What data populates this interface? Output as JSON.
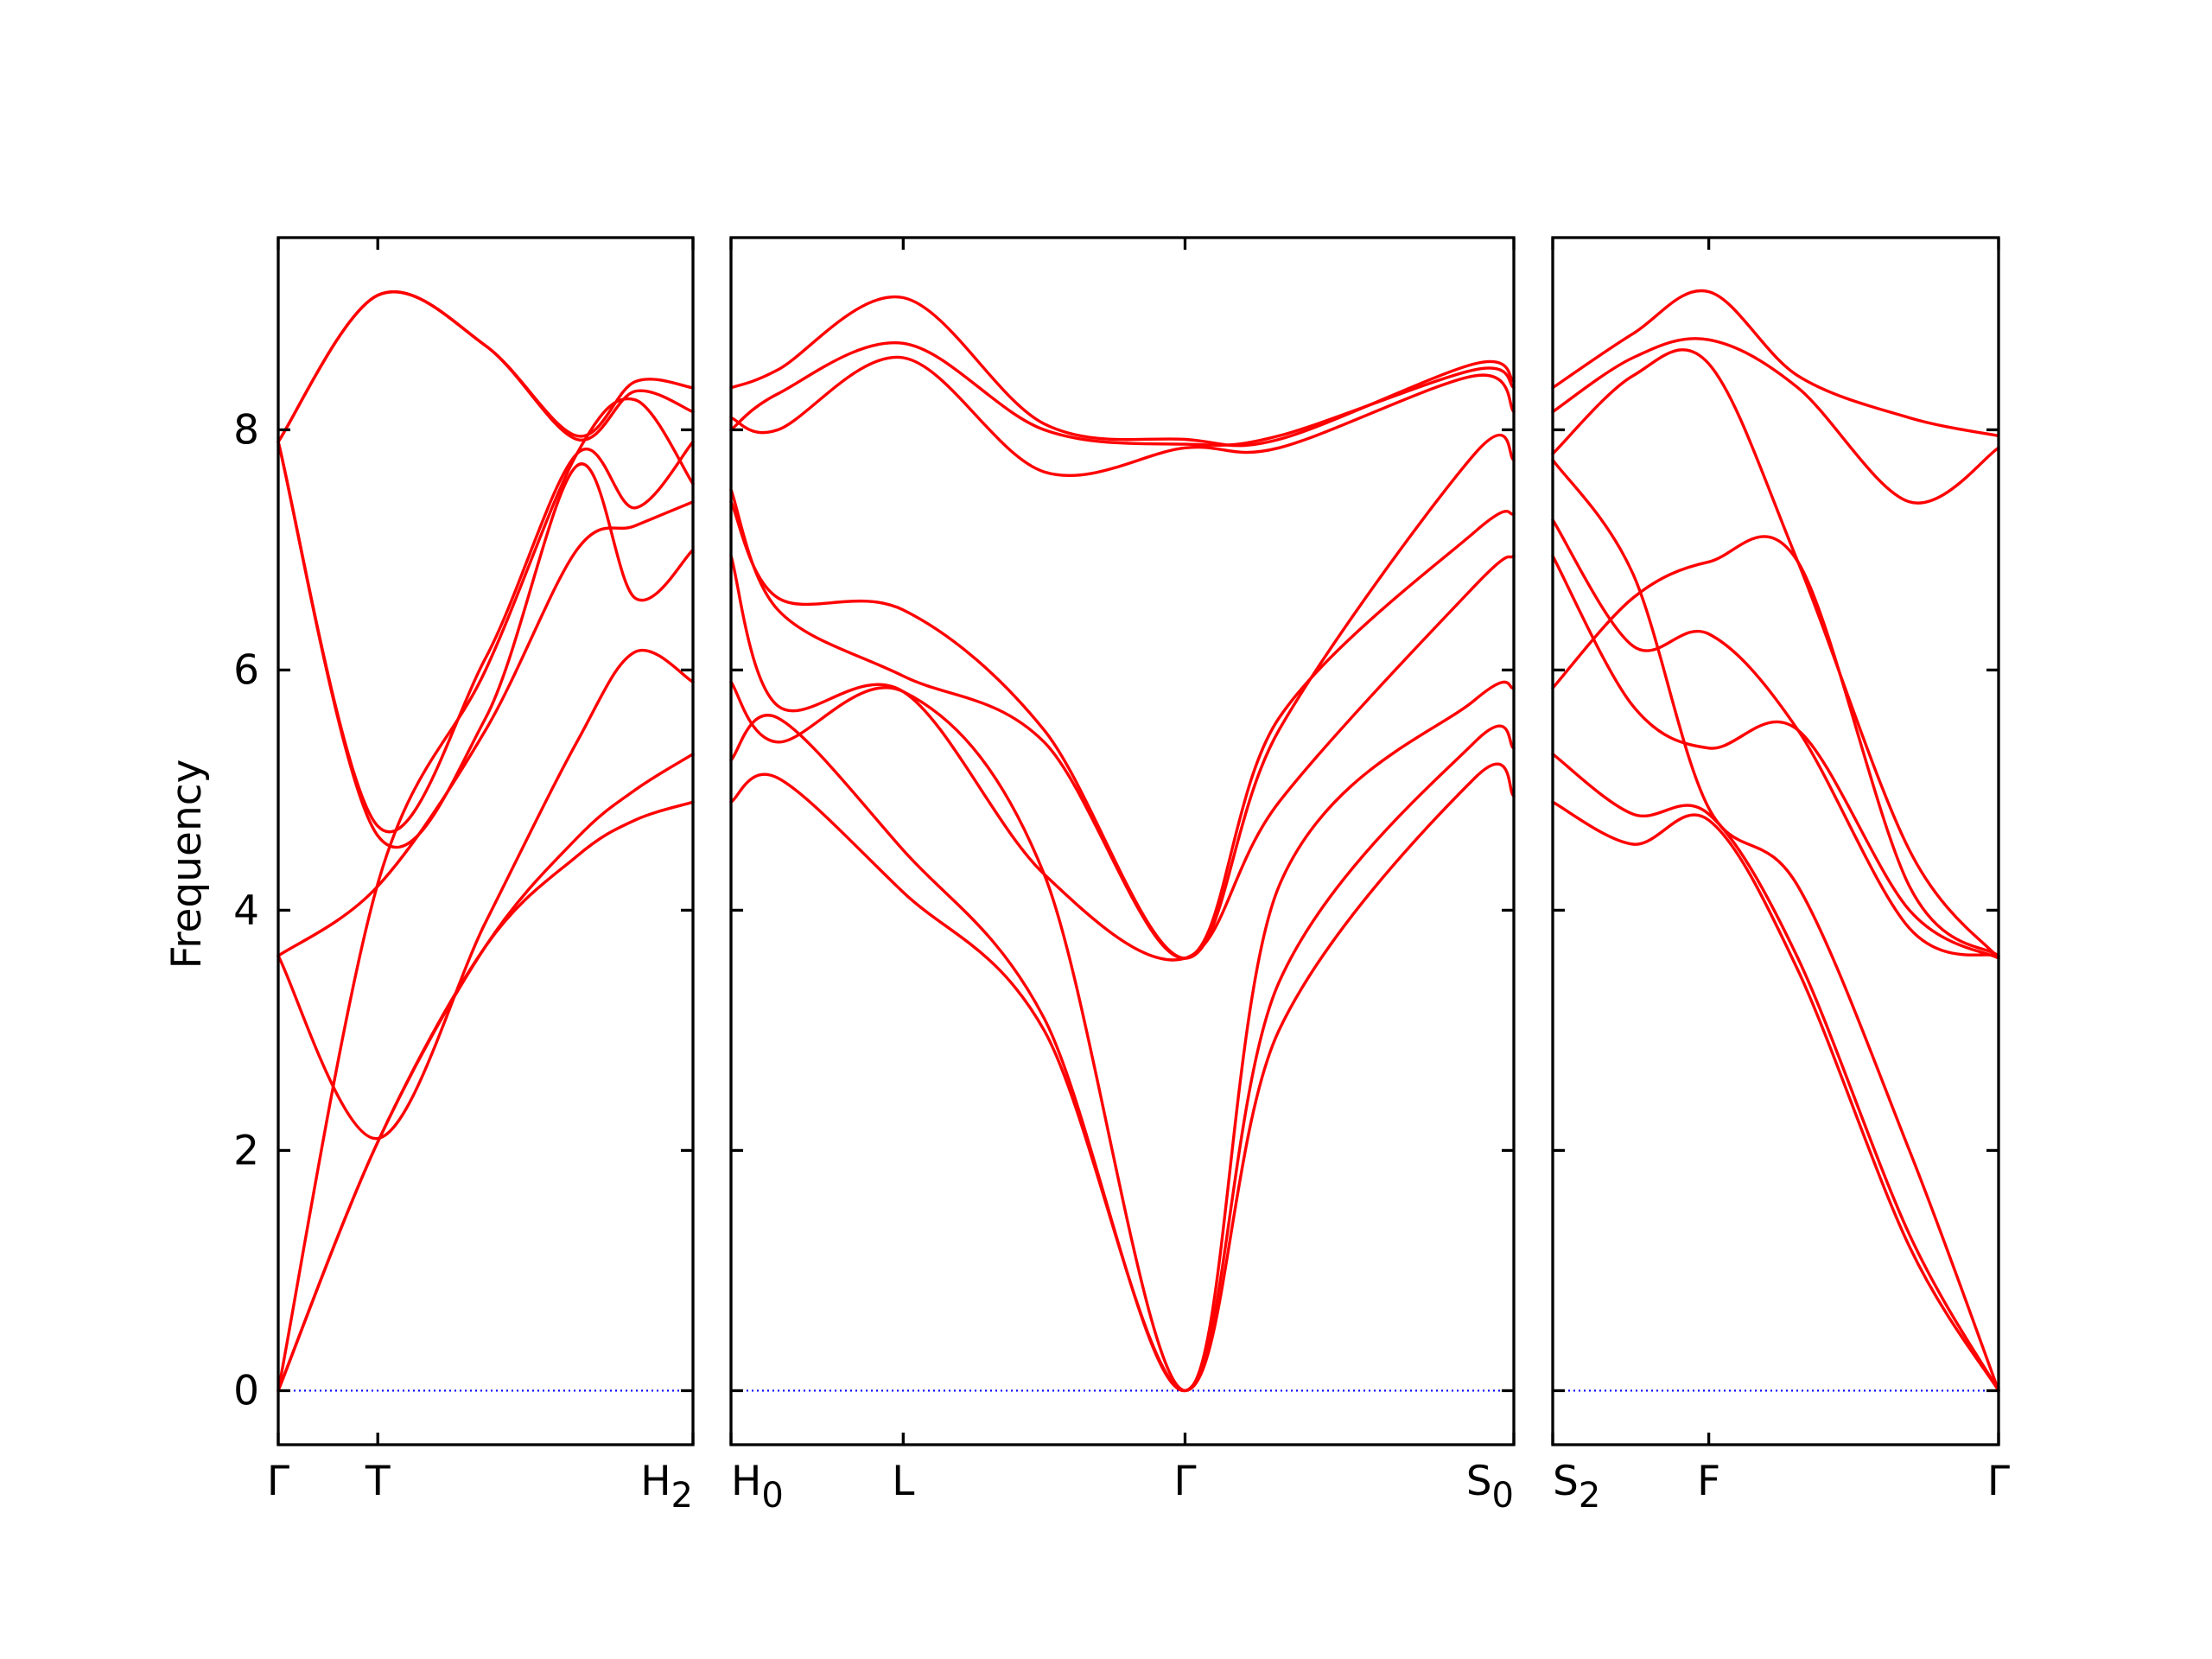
{
  "chart_data": {
    "type": "line",
    "ylabel": "Frequency",
    "ylim": [
      -0.45,
      9.6
    ],
    "yticks": [
      0,
      2,
      4,
      6,
      8
    ],
    "grid": false,
    "legend": "none",
    "colors": {
      "band": "#ff0000",
      "zero_line": "#0000ff",
      "frame": "#000000"
    },
    "panels": [
      {
        "name": "Γ–T–H2",
        "xlim": [
          0,
          1
        ],
        "ticks": [
          {
            "x": 0,
            "label": "Γ"
          },
          {
            "x": 0.24,
            "label": "T"
          },
          {
            "x": 1,
            "label": "H",
            "sub": "2",
            "anchor": "end"
          }
        ],
        "x": [
          0,
          0.24,
          0.5,
          0.72,
          0.86,
          1
        ],
        "bands": [
          [
            0,
            2.07,
            3.7,
            4.45,
            4.75,
            4.9
          ],
          [
            0,
            2.07,
            3.7,
            4.6,
            5.0,
            5.3
          ],
          [
            3.62,
            2.1,
            3.9,
            5.4,
            6.15,
            5.9
          ],
          [
            7.9,
            4.62,
            5.6,
            7.7,
            6.6,
            7.0
          ],
          [
            3.62,
            4.2,
            5.5,
            7.0,
            7.2,
            7.4
          ],
          [
            0,
            4.22,
            6.0,
            7.8,
            8.25,
            7.55
          ],
          [
            7.9,
            4.7,
            6.1,
            7.8,
            7.35,
            7.9
          ],
          [
            7.9,
            9.12,
            8.7,
            7.92,
            8.32,
            8.15
          ],
          [
            7.9,
            9.12,
            8.7,
            7.95,
            8.4,
            8.35
          ]
        ]
      },
      {
        "name": "H0–L–Γ–S0",
        "xlim": [
          0,
          1
        ],
        "ticks": [
          {
            "x": 0,
            "label": "H",
            "sub": "0",
            "anchor": "start"
          },
          {
            "x": 0.22,
            "label": "L"
          },
          {
            "x": 0.58,
            "label": "Γ"
          },
          {
            "x": 1,
            "label": "S",
            "sub": "0",
            "anchor": "end"
          }
        ],
        "x": [
          0,
          0.06,
          0.22,
          0.4,
          0.58,
          0.7,
          0.95,
          1
        ],
        "bands": [
          [
            4.9,
            5.1,
            4.15,
            3.0,
            0,
            3.0,
            5.1,
            4.95
          ],
          [
            5.25,
            5.6,
            4.5,
            3.1,
            0,
            3.4,
            5.4,
            5.35
          ],
          [
            5.9,
            5.4,
            5.82,
            4.3,
            0,
            4.2,
            5.75,
            5.85
          ],
          [
            6.95,
            5.7,
            5.82,
            4.3,
            3.6,
            4.9,
            6.7,
            6.95
          ],
          [
            7.5,
            6.5,
            5.95,
            5.4,
            3.6,
            5.6,
            7.15,
            7.3
          ],
          [
            7.4,
            6.6,
            6.5,
            5.5,
            3.6,
            5.5,
            7.8,
            7.75
          ],
          [
            8.1,
            8.0,
            8.6,
            7.65,
            7.85,
            7.85,
            8.45,
            8.15
          ],
          [
            8.0,
            8.3,
            8.72,
            8.0,
            7.88,
            7.95,
            8.5,
            8.35
          ],
          [
            8.35,
            8.5,
            9.1,
            8.05,
            7.92,
            7.92,
            8.55,
            8.4
          ]
        ]
      },
      {
        "name": "S2–F–Γ",
        "xlim": [
          0,
          1
        ],
        "ticks": [
          {
            "x": 0,
            "label": "S",
            "sub": "2",
            "anchor": "start"
          },
          {
            "x": 0.35,
            "label": "F"
          },
          {
            "x": 1,
            "label": "Γ"
          }
        ],
        "x": [
          0,
          0.18,
          0.35,
          0.55,
          0.8,
          1
        ],
        "bands": [
          [
            4.9,
            4.55,
            4.75,
            3.5,
            1.2,
            0
          ],
          [
            5.3,
            4.8,
            4.8,
            3.6,
            1.3,
            0
          ],
          [
            5.85,
            6.6,
            6.9,
            6.9,
            4.2,
            3.62
          ],
          [
            6.95,
            5.7,
            5.35,
            5.5,
            4.0,
            3.6
          ],
          [
            7.25,
            6.2,
            6.3,
            5.5,
            3.85,
            3.62
          ],
          [
            7.75,
            6.8,
            4.85,
            4.2,
            2.0,
            0
          ],
          [
            7.8,
            8.45,
            8.55,
            6.9,
            4.5,
            3.6
          ],
          [
            8.15,
            8.6,
            8.75,
            8.35,
            7.4,
            7.85
          ],
          [
            8.35,
            8.8,
            9.15,
            8.45,
            8.1,
            7.95
          ]
        ]
      }
    ]
  }
}
